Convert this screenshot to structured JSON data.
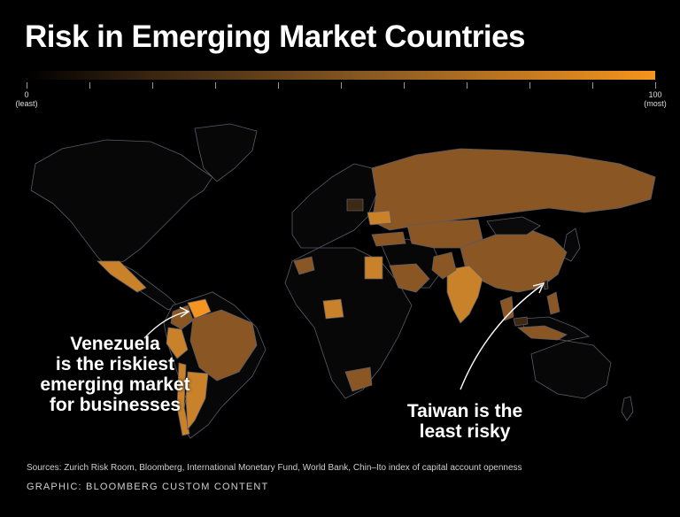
{
  "title": "Risk in Emerging Market Countries",
  "scale": {
    "min_value": "0",
    "min_label": "(least)",
    "max_value": "100",
    "max_label": "(most)",
    "colors": {
      "low": "#000000",
      "mid": "#8a5a22",
      "high": "#f5941e"
    }
  },
  "map": {
    "colors": {
      "land_other": "#070707",
      "border": "#5a5a66",
      "em_medium": "#8a5724",
      "em_high": "#c9822a",
      "em_highest": "#f5941e",
      "em_low": "#3e2a14"
    }
  },
  "annotations": {
    "venezuela": [
      "Venezuela",
      "is the riskiest",
      "emerging market",
      "for businesses"
    ],
    "taiwan": [
      "Taiwan is the",
      "least risky"
    ]
  },
  "sources": "Sources: Zurich Risk Room, Bloomberg, International Monetary Fund, World Bank, Chin–Ito index of capital account openness",
  "credit": "GRAPHIC: BLOOMBERG CUSTOM CONTENT"
}
